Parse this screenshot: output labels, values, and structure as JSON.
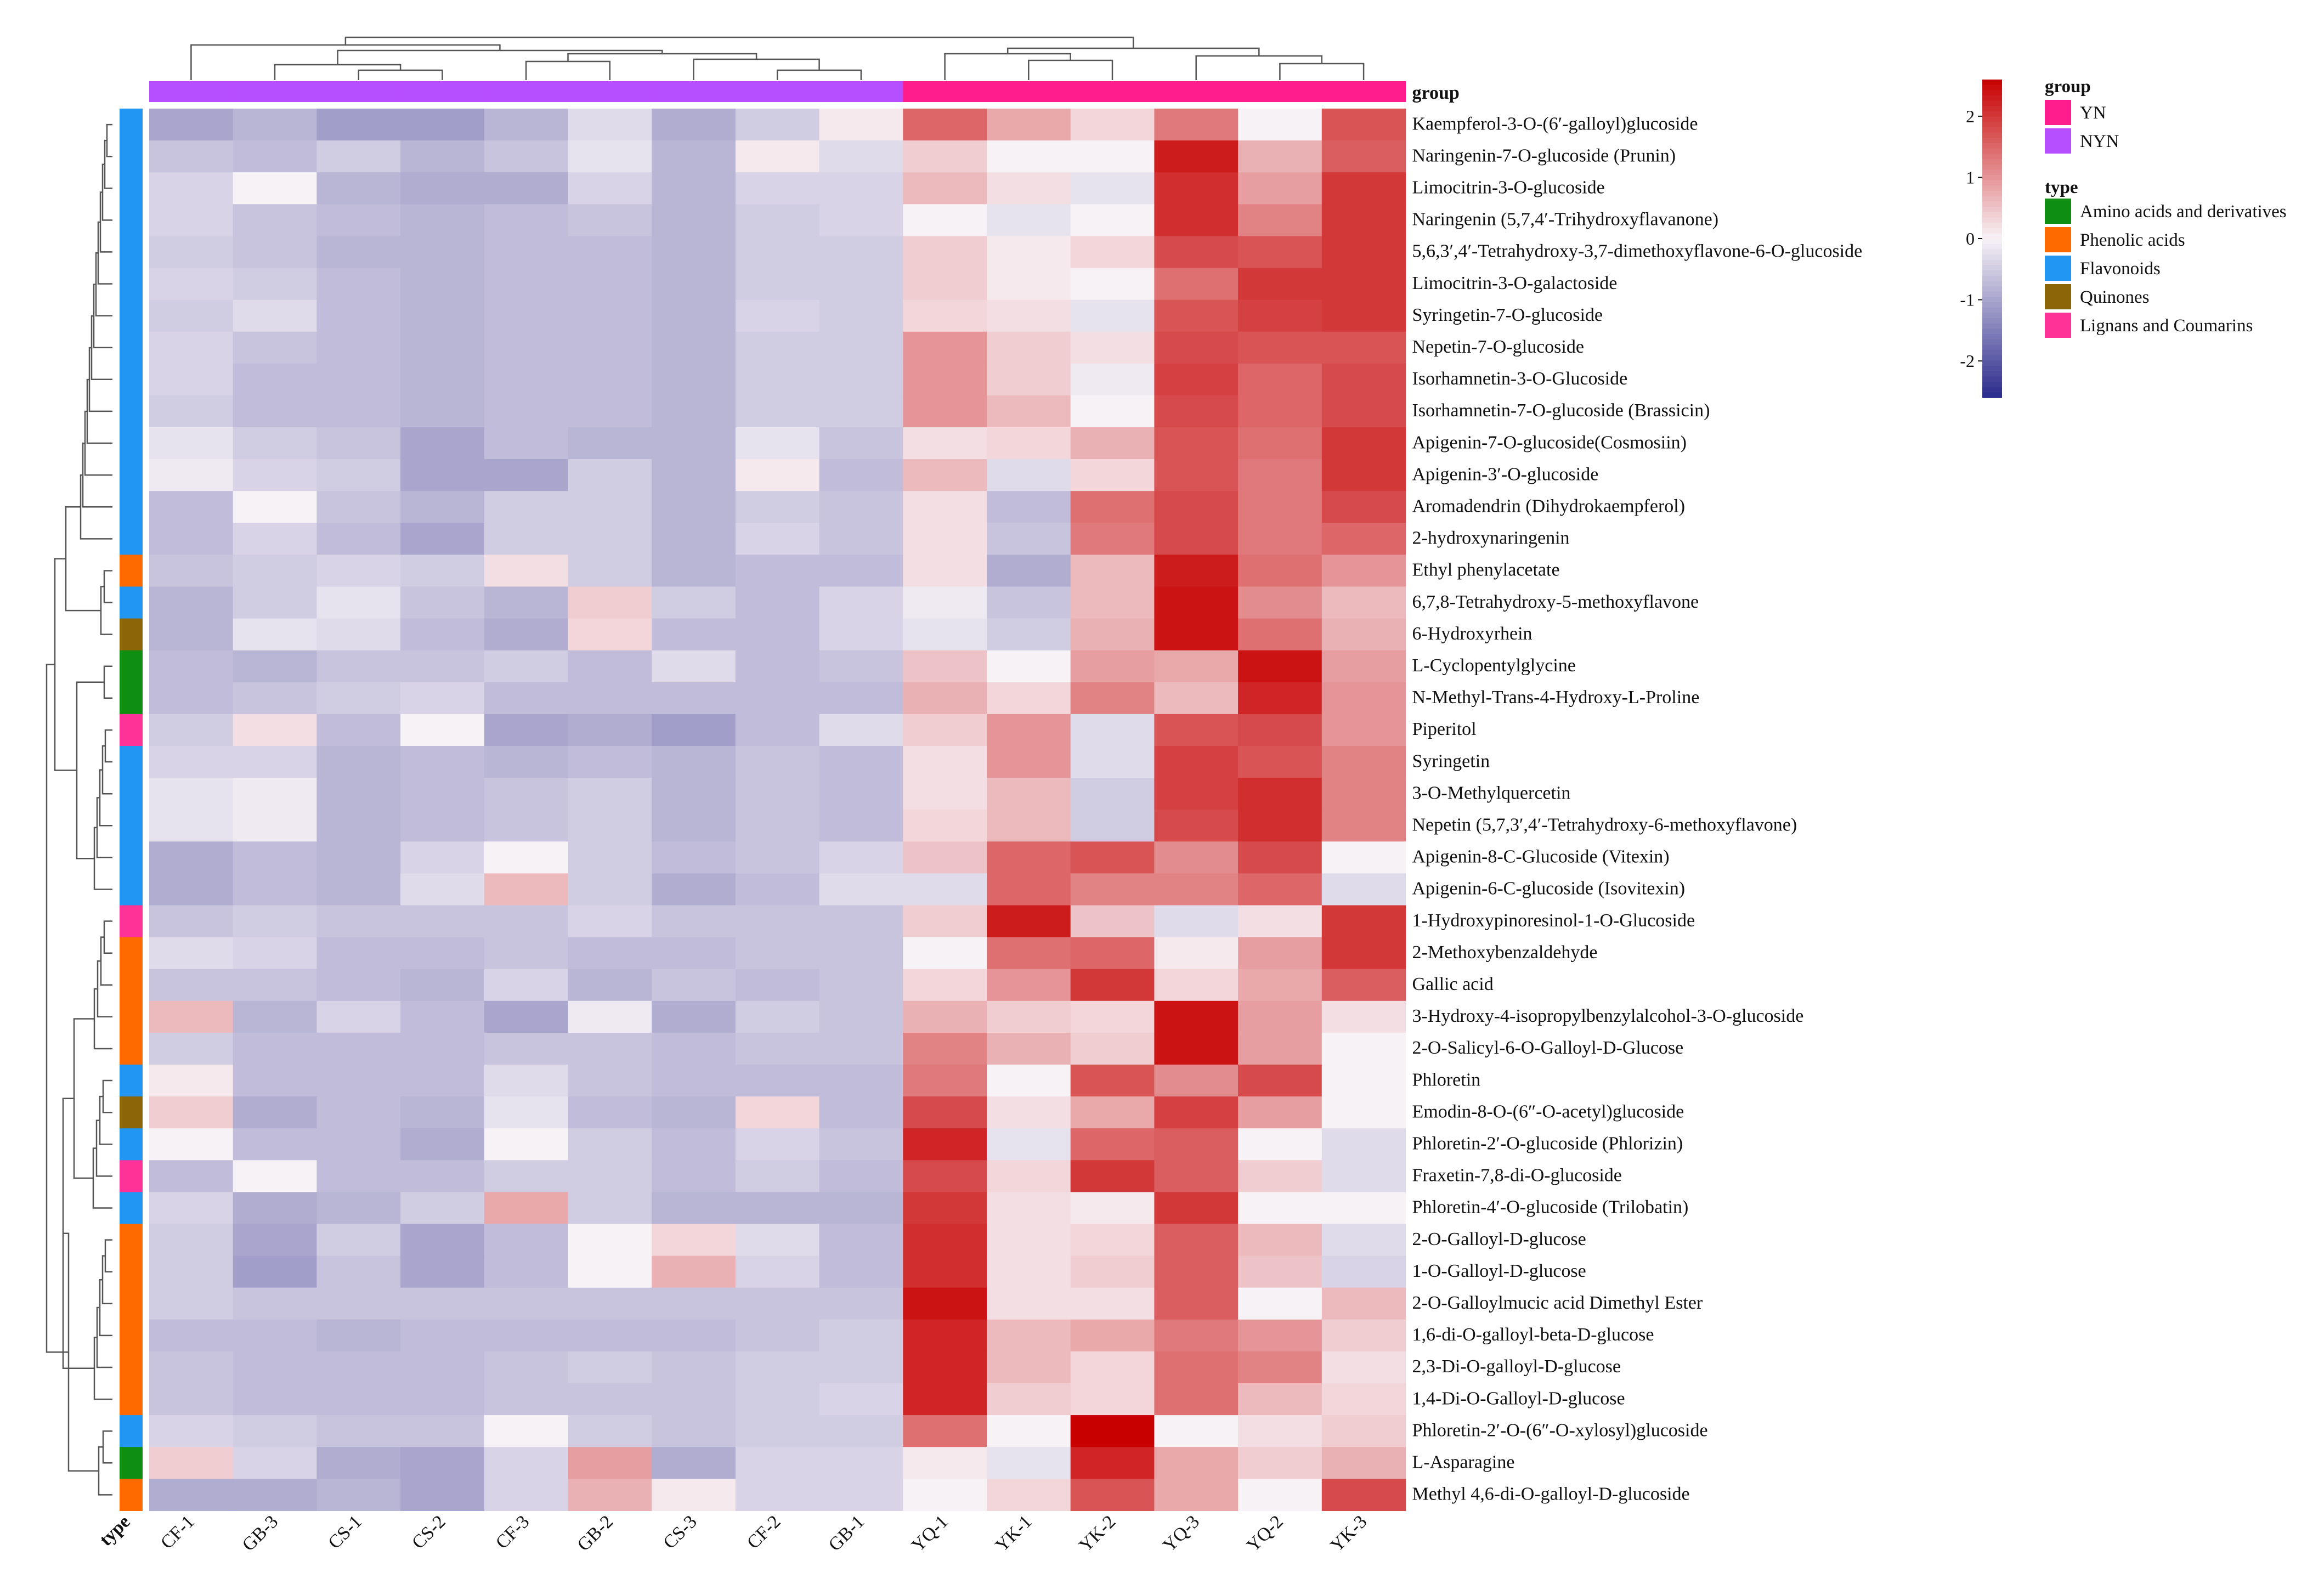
{
  "chart_data": {
    "type": "heatmap",
    "title": "",
    "columns": [
      "CF-1",
      "GB-3",
      "CS-1",
      "CS-2",
      "CF-3",
      "GB-2",
      "CS-3",
      "CF-2",
      "GB-1",
      "YQ-1",
      "YK-1",
      "YK-2",
      "YQ-3",
      "YQ-2",
      "YK-3"
    ],
    "column_groups": [
      "NYN",
      "NYN",
      "NYN",
      "NYN",
      "NYN",
      "NYN",
      "NYN",
      "NYN",
      "NYN",
      "YN",
      "YN",
      "YN",
      "YN",
      "YN",
      "YN"
    ],
    "row_header": "group",
    "rows": [
      "Kaempferol-3-O-(6′-galloyl)glucoside",
      "Naringenin-7-O-glucoside (Prunin)",
      "Limocitrin-3-O-glucoside",
      "Naringenin (5,7,4′-Trihydroxyflavanone)",
      "5,6,3′,4′-Tetrahydroxy-3,7-dimethoxyflavone-6-O-glucoside",
      "Limocitrin-3-O-galactoside",
      "Syringetin-7-O-glucoside",
      "Nepetin-7-O-glucoside",
      "Isorhamnetin-3-O-Glucoside",
      "Isorhamnetin-7-O-glucoside (Brassicin)",
      "Apigenin-7-O-glucoside(Cosmosiin)",
      "Apigenin-3′-O-glucoside",
      "Aromadendrin (Dihydrokaempferol)",
      "2-hydroxynaringenin",
      "Ethyl phenylacetate",
      "6,7,8-Tetrahydroxy-5-methoxyflavone",
      "6-Hydroxyrhein",
      "L-Cyclopentylglycine",
      "N-Methyl-Trans-4-Hydroxy-L-Proline",
      "Piperitol",
      "Syringetin",
      "3-O-Methylquercetin",
      "Nepetin (5,7,3′,4′-Tetrahydroxy-6-methoxyflavone)",
      "Apigenin-8-C-Glucoside (Vitexin)",
      "Apigenin-6-C-glucoside (Isovitexin)",
      "1-Hydroxypinoresinol-1-O-Glucoside",
      "2-Methoxybenzaldehyde",
      "Gallic acid",
      "3-Hydroxy-4-isopropylbenzylalcohol-3-O-glucoside",
      "2-O-Salicyl-6-O-Galloyl-D-Glucose",
      "Phloretin",
      "Emodin-8-O-(6″-O-acetyl)glucoside",
      "Phloretin-2′-O-glucoside (Phlorizin)",
      "Fraxetin-7,8-di-O-glucoside",
      "Phloretin-4′-O-glucoside (Trilobatin)",
      "2-O-Galloyl-D-glucose",
      "1-O-Galloyl-D-glucose",
      "2-O-Galloylmucic acid Dimethyl Ester",
      "1,6-di-O-galloyl-beta-D-glucose",
      "2,3-Di-O-galloyl-D-glucose",
      "1,4-Di-O-Galloyl-D-glucose",
      "Phloretin-2′-O-(6″-O-xylosyl)glucoside",
      "L-Asparagine",
      "Methyl 4,6-di-O-galloyl-D-glucoside"
    ],
    "row_types": [
      "Flavonoids",
      "Flavonoids",
      "Flavonoids",
      "Flavonoids",
      "Flavonoids",
      "Flavonoids",
      "Flavonoids",
      "Flavonoids",
      "Flavonoids",
      "Flavonoids",
      "Flavonoids",
      "Flavonoids",
      "Flavonoids",
      "Flavonoids",
      "Phenolic acids",
      "Flavonoids",
      "Quinones",
      "Amino acids and derivatives",
      "Amino acids and derivatives",
      "Lignans and Coumarins",
      "Flavonoids",
      "Flavonoids",
      "Flavonoids",
      "Flavonoids",
      "Flavonoids",
      "Lignans and Coumarins",
      "Phenolic acids",
      "Phenolic acids",
      "Phenolic acids",
      "Phenolic acids",
      "Flavonoids",
      "Quinones",
      "Flavonoids",
      "Lignans and Coumarins",
      "Flavonoids",
      "Phenolic acids",
      "Phenolic acids",
      "Phenolic acids",
      "Phenolic acids",
      "Phenolic acids",
      "Phenolic acids",
      "Flavonoids",
      "Amino acids and derivatives",
      "Phenolic acids"
    ],
    "values": [
      [
        -1.0,
        -0.8,
        -1.1,
        -1.1,
        -0.8,
        -0.3,
        -0.9,
        -0.5,
        0.1,
        1.5,
        0.8,
        0.3,
        1.3,
        0.0,
        1.7
      ],
      [
        -0.6,
        -0.7,
        -0.5,
        -0.8,
        -0.6,
        -0.2,
        -0.8,
        0.1,
        -0.3,
        0.4,
        0.0,
        0.0,
        2.3,
        0.7,
        1.6
      ],
      [
        -0.4,
        0.0,
        -0.8,
        -0.9,
        -0.9,
        -0.4,
        -0.8,
        -0.4,
        -0.4,
        0.6,
        0.2,
        -0.2,
        2.1,
        0.9,
        2.0
      ],
      [
        -0.4,
        -0.6,
        -0.7,
        -0.8,
        -0.7,
        -0.6,
        -0.8,
        -0.5,
        -0.4,
        0.0,
        -0.2,
        0.0,
        2.1,
        1.2,
        2.0
      ],
      [
        -0.5,
        -0.6,
        -0.8,
        -0.8,
        -0.7,
        -0.7,
        -0.8,
        -0.5,
        -0.5,
        0.4,
        0.1,
        0.3,
        1.8,
        1.7,
        2.0
      ],
      [
        -0.4,
        -0.5,
        -0.7,
        -0.8,
        -0.7,
        -0.7,
        -0.8,
        -0.5,
        -0.5,
        0.4,
        0.1,
        0.0,
        1.4,
        2.0,
        2.0
      ],
      [
        -0.5,
        -0.3,
        -0.7,
        -0.8,
        -0.7,
        -0.7,
        -0.8,
        -0.4,
        -0.5,
        0.3,
        0.2,
        -0.2,
        1.7,
        1.9,
        2.0
      ],
      [
        -0.4,
        -0.6,
        -0.7,
        -0.8,
        -0.7,
        -0.7,
        -0.8,
        -0.5,
        -0.5,
        1.0,
        0.4,
        0.2,
        1.8,
        1.7,
        1.7
      ],
      [
        -0.4,
        -0.7,
        -0.7,
        -0.8,
        -0.7,
        -0.7,
        -0.8,
        -0.5,
        -0.5,
        1.0,
        0.4,
        -0.1,
        1.9,
        1.5,
        1.8
      ],
      [
        -0.5,
        -0.7,
        -0.7,
        -0.8,
        -0.7,
        -0.7,
        -0.8,
        -0.5,
        -0.5,
        1.0,
        0.6,
        0.0,
        1.8,
        1.5,
        1.8
      ],
      [
        -0.2,
        -0.5,
        -0.6,
        -1.0,
        -0.7,
        -0.8,
        -0.8,
        -0.2,
        -0.6,
        0.2,
        0.3,
        0.7,
        1.7,
        1.4,
        2.0
      ],
      [
        -0.1,
        -0.4,
        -0.5,
        -1.0,
        -1.0,
        -0.5,
        -0.8,
        0.1,
        -0.7,
        0.6,
        -0.3,
        0.3,
        1.7,
        1.3,
        2.0
      ],
      [
        -0.7,
        0.0,
        -0.6,
        -0.8,
        -0.5,
        -0.5,
        -0.8,
        -0.5,
        -0.6,
        0.2,
        -0.7,
        1.4,
        1.8,
        1.3,
        1.8
      ],
      [
        -0.7,
        -0.4,
        -0.7,
        -1.0,
        -0.5,
        -0.5,
        -0.8,
        -0.4,
        -0.6,
        0.2,
        -0.6,
        1.3,
        1.8,
        1.3,
        1.5
      ],
      [
        -0.6,
        -0.5,
        -0.4,
        -0.5,
        0.2,
        -0.5,
        -0.8,
        -0.7,
        -0.7,
        0.2,
        -0.9,
        0.6,
        2.3,
        1.4,
        1.0
      ],
      [
        -0.8,
        -0.5,
        -0.2,
        -0.6,
        -0.8,
        0.4,
        -0.5,
        -0.7,
        -0.4,
        -0.1,
        -0.6,
        0.6,
        2.4,
        1.1,
        0.6
      ],
      [
        -0.8,
        -0.2,
        -0.3,
        -0.7,
        -0.9,
        0.3,
        -0.7,
        -0.7,
        -0.4,
        -0.2,
        -0.5,
        0.7,
        2.4,
        1.4,
        0.7
      ],
      [
        -0.7,
        -0.8,
        -0.6,
        -0.6,
        -0.5,
        -0.7,
        -0.3,
        -0.7,
        -0.6,
        0.5,
        0.0,
        0.9,
        0.8,
        2.4,
        0.9
      ],
      [
        -0.7,
        -0.6,
        -0.5,
        -0.4,
        -0.7,
        -0.7,
        -0.7,
        -0.7,
        -0.7,
        0.7,
        0.3,
        1.2,
        0.6,
        2.2,
        1.0
      ],
      [
        -0.5,
        0.2,
        -0.7,
        0.0,
        -1.0,
        -0.9,
        -1.1,
        -0.7,
        -0.3,
        0.4,
        1.0,
        -0.3,
        1.7,
        1.8,
        1.0
      ],
      [
        -0.4,
        -0.4,
        -0.8,
        -0.7,
        -0.8,
        -0.7,
        -0.8,
        -0.6,
        -0.7,
        0.2,
        1.0,
        -0.3,
        1.9,
        1.7,
        1.2
      ],
      [
        -0.2,
        -0.1,
        -0.8,
        -0.7,
        -0.6,
        -0.5,
        -0.8,
        -0.6,
        -0.7,
        0.2,
        0.6,
        -0.5,
        1.9,
        2.1,
        1.2
      ],
      [
        -0.2,
        -0.1,
        -0.8,
        -0.7,
        -0.6,
        -0.5,
        -0.8,
        -0.6,
        -0.7,
        0.3,
        0.6,
        -0.5,
        1.8,
        2.1,
        1.2
      ],
      [
        -0.9,
        -0.7,
        -0.8,
        -0.4,
        0.0,
        -0.5,
        -0.7,
        -0.6,
        -0.4,
        0.5,
        1.5,
        1.7,
        1.1,
        1.8,
        0.0
      ],
      [
        -0.9,
        -0.7,
        -0.8,
        -0.3,
        0.6,
        -0.5,
        -0.9,
        -0.7,
        -0.3,
        -0.3,
        1.5,
        1.2,
        1.2,
        1.5,
        -0.3
      ],
      [
        -0.6,
        -0.5,
        -0.6,
        -0.6,
        -0.6,
        -0.4,
        -0.6,
        -0.6,
        -0.6,
        0.4,
        2.3,
        0.5,
        -0.3,
        0.2,
        2.0
      ],
      [
        -0.3,
        -0.4,
        -0.7,
        -0.7,
        -0.6,
        -0.7,
        -0.7,
        -0.6,
        -0.6,
        0.0,
        1.4,
        1.5,
        0.1,
        0.9,
        2.0
      ],
      [
        -0.6,
        -0.6,
        -0.7,
        -0.8,
        -0.4,
        -0.8,
        -0.6,
        -0.7,
        -0.6,
        0.3,
        1.0,
        2.0,
        0.3,
        0.8,
        1.6
      ],
      [
        0.6,
        -0.8,
        -0.4,
        -0.7,
        -1.0,
        -0.1,
        -0.9,
        -0.5,
        -0.6,
        0.7,
        0.4,
        0.3,
        2.4,
        0.9,
        0.2
      ],
      [
        -0.5,
        -0.7,
        -0.7,
        -0.7,
        -0.6,
        -0.6,
        -0.7,
        -0.6,
        -0.6,
        1.2,
        0.7,
        0.4,
        2.4,
        0.9,
        0.0
      ],
      [
        0.1,
        -0.7,
        -0.7,
        -0.7,
        -0.3,
        -0.6,
        -0.7,
        -0.7,
        -0.7,
        1.3,
        0.0,
        1.7,
        1.1,
        1.8,
        0.0
      ],
      [
        0.4,
        -0.9,
        -0.7,
        -0.8,
        -0.2,
        -0.7,
        -0.8,
        0.3,
        -0.7,
        1.8,
        0.2,
        0.8,
        1.9,
        0.9,
        0.0
      ],
      [
        0.0,
        -0.7,
        -0.7,
        -0.9,
        0.0,
        -0.5,
        -0.7,
        -0.4,
        -0.6,
        2.2,
        -0.2,
        1.5,
        1.6,
        0.0,
        -0.3
      ],
      [
        -0.7,
        0.0,
        -0.7,
        -0.7,
        -0.5,
        -0.5,
        -0.7,
        -0.5,
        -0.7,
        1.8,
        0.3,
        2.0,
        1.6,
        0.4,
        -0.3
      ],
      [
        -0.4,
        -0.9,
        -0.8,
        -0.5,
        0.8,
        -0.5,
        -0.8,
        -0.8,
        -0.8,
        2.0,
        0.2,
        0.1,
        2.0,
        0.0,
        0.0
      ],
      [
        -0.5,
        -1.0,
        -0.5,
        -1.0,
        -0.7,
        0.0,
        0.3,
        -0.3,
        -0.7,
        2.1,
        0.2,
        0.3,
        1.6,
        0.6,
        -0.3
      ],
      [
        -0.5,
        -1.1,
        -0.6,
        -1.0,
        -0.7,
        0.0,
        0.7,
        -0.4,
        -0.7,
        2.1,
        0.2,
        0.4,
        1.6,
        0.5,
        -0.4
      ],
      [
        -0.5,
        -0.6,
        -0.6,
        -0.6,
        -0.6,
        -0.6,
        -0.6,
        -0.6,
        -0.6,
        2.4,
        0.2,
        0.2,
        1.6,
        0.0,
        0.6
      ],
      [
        -0.7,
        -0.7,
        -0.8,
        -0.7,
        -0.7,
        -0.7,
        -0.7,
        -0.6,
        -0.5,
        2.2,
        0.6,
        0.8,
        1.3,
        1.0,
        0.4
      ],
      [
        -0.6,
        -0.7,
        -0.7,
        -0.7,
        -0.6,
        -0.5,
        -0.6,
        -0.5,
        -0.5,
        2.2,
        0.6,
        0.3,
        1.4,
        1.2,
        0.2
      ],
      [
        -0.6,
        -0.7,
        -0.7,
        -0.7,
        -0.6,
        -0.6,
        -0.6,
        -0.5,
        -0.4,
        2.2,
        0.4,
        0.3,
        1.4,
        0.6,
        0.3
      ],
      [
        -0.4,
        -0.5,
        -0.6,
        -0.6,
        0.0,
        -0.5,
        -0.6,
        -0.5,
        -0.5,
        1.4,
        0.0,
        2.6,
        0.0,
        0.2,
        0.4
      ],
      [
        0.4,
        -0.4,
        -0.9,
        -1.0,
        -0.4,
        0.9,
        -0.9,
        -0.4,
        -0.4,
        0.1,
        -0.2,
        2.2,
        0.8,
        0.4,
        0.7
      ],
      [
        -0.9,
        -0.9,
        -0.8,
        -1.0,
        -0.4,
        0.7,
        0.1,
        -0.4,
        -0.4,
        0.0,
        0.3,
        1.7,
        0.8,
        0.0,
        1.8
      ]
    ],
    "color_scale": {
      "min": -2.6,
      "max": 2.6,
      "low": "#2b2b8c",
      "mid": "#f7f2f6",
      "high": "#c80000"
    },
    "colorbar_ticks": [
      2,
      1,
      0,
      -1,
      -2
    ],
    "x_annotation_label": "type",
    "legend": {
      "group_title": "group",
      "groups": [
        {
          "name": "YN",
          "color": "#ff1d8e"
        },
        {
          "name": "NYN",
          "color": "#b64fff"
        }
      ],
      "type_title": "type",
      "types": [
        {
          "name": "Amino acids and derivatives",
          "color": "#0e8f12"
        },
        {
          "name": "Phenolic acids",
          "color": "#ff6a00"
        },
        {
          "name": "Flavonoids",
          "color": "#2196f3"
        },
        {
          "name": "Quinones",
          "color": "#8b6508"
        },
        {
          "name": "Lignans and Coumarins",
          "color": "#ff3397"
        }
      ]
    },
    "dendrogram_color": "#555555"
  }
}
